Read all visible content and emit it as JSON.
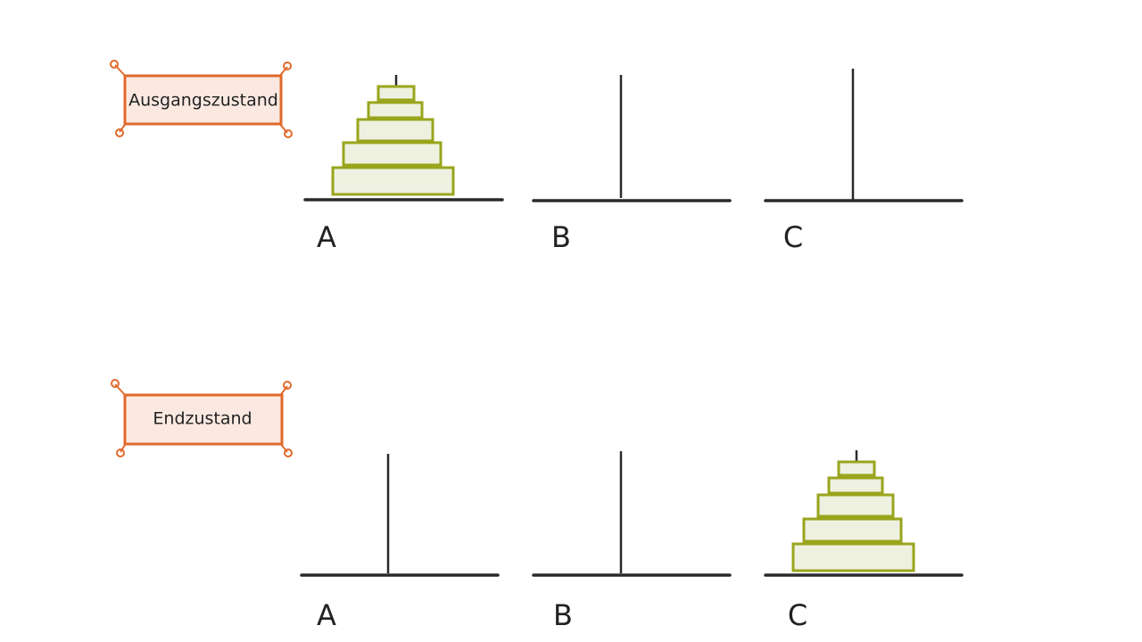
{
  "states": [
    {
      "label": "Ausgangszustand",
      "pegs": [
        "A",
        "B",
        "C"
      ]
    },
    {
      "label": "Endzustand",
      "pegs": [
        "A",
        "B",
        "C"
      ]
    }
  ]
}
